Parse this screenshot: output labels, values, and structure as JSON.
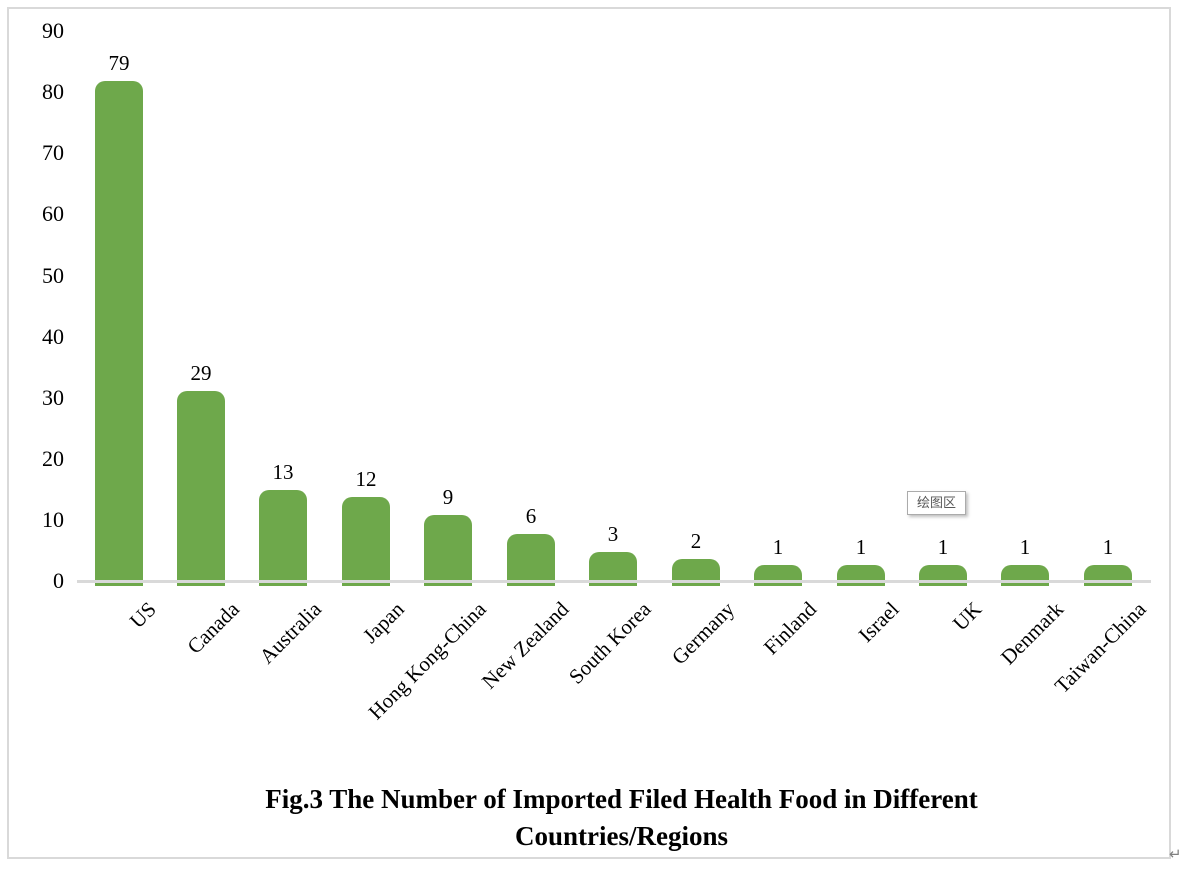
{
  "chart_data": {
    "type": "bar",
    "title": "Fig.3 The Number of Imported Filed Health Food in Different Countries/Regions",
    "title_lines": [
      "Fig.3 The Number of Imported Filed Health Food in Different",
      "Countries/Regions"
    ],
    "categories": [
      "US",
      "Canada",
      "Australia",
      "Japan",
      "Hong Kong-China",
      "New Zealand",
      "South Korea",
      "Germany",
      "Finland",
      "Israel",
      "UK",
      "Denmark",
      "Taiwan-China"
    ],
    "values": [
      79,
      29,
      13,
      12,
      9,
      6,
      3,
      2,
      1,
      1,
      1,
      1,
      1
    ],
    "data_labels": [
      "79",
      "29",
      "13",
      "12",
      "9",
      "6",
      "3",
      "2",
      "1",
      "1",
      "1",
      "1",
      "1"
    ],
    "xlabel": "",
    "ylabel": "",
    "ylim": [
      0,
      90
    ],
    "ytick_interval": 10,
    "ytick_labels": [
      "0",
      "10",
      "20",
      "30",
      "40",
      "50",
      "60",
      "70",
      "80",
      "90"
    ],
    "grid": false,
    "legend": false,
    "bar_color": "#6EA84B",
    "axis_color": "#D9D9D9",
    "category_label_rotation_deg": -45
  },
  "tooltip": {
    "label": "绘图区"
  },
  "page": {
    "paragraph_mark": "↵"
  }
}
